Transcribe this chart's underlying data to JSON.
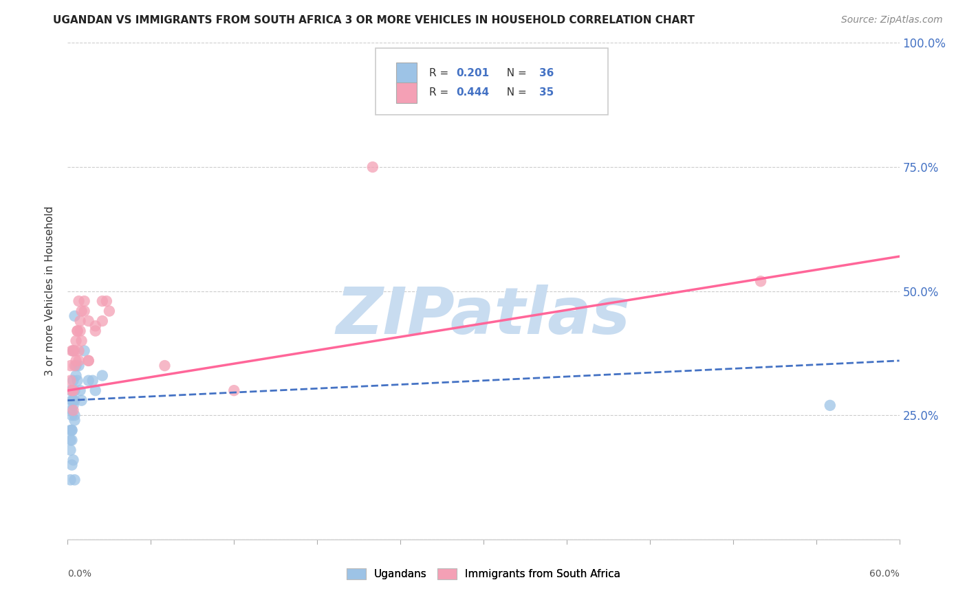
{
  "title": "UGANDAN VS IMMIGRANTS FROM SOUTH AFRICA 3 OR MORE VEHICLES IN HOUSEHOLD CORRELATION CHART",
  "source": "Source: ZipAtlas.com",
  "ylabel": "3 or more Vehicles in Household",
  "xmin": 0.0,
  "xmax": 60.0,
  "ymin": 0.0,
  "ymax": 100.0,
  "yticks": [
    0,
    25,
    50,
    75,
    100
  ],
  "ytick_labels": [
    "",
    "25.0%",
    "50.0%",
    "75.0%",
    "100.0%"
  ],
  "blue_R": 0.201,
  "blue_N": 36,
  "pink_R": 0.444,
  "pink_N": 35,
  "blue_color": "#9DC3E6",
  "pink_color": "#F4A0B5",
  "blue_line_color": "#4472C4",
  "pink_line_color": "#FF6699",
  "blue_scatter": [
    [
      0.2,
      20
    ],
    [
      0.3,
      22
    ],
    [
      0.5,
      45
    ],
    [
      0.4,
      38
    ],
    [
      0.6,
      35
    ],
    [
      0.2,
      30
    ],
    [
      0.3,
      28
    ],
    [
      0.4,
      32
    ],
    [
      0.5,
      28
    ],
    [
      0.3,
      25
    ],
    [
      0.4,
      27
    ],
    [
      0.5,
      30
    ],
    [
      0.2,
      22
    ],
    [
      0.3,
      20
    ],
    [
      0.6,
      33
    ],
    [
      0.5,
      25
    ],
    [
      0.7,
      32
    ],
    [
      0.4,
      28
    ],
    [
      0.2,
      18
    ],
    [
      0.5,
      24
    ],
    [
      0.9,
      30
    ],
    [
      1.5,
      32
    ],
    [
      2.0,
      30
    ],
    [
      2.5,
      33
    ],
    [
      1.2,
      38
    ],
    [
      0.3,
      26
    ],
    [
      0.4,
      28
    ],
    [
      0.8,
      35
    ],
    [
      1.0,
      28
    ],
    [
      1.8,
      32
    ],
    [
      0.3,
      22
    ],
    [
      0.2,
      12
    ],
    [
      0.3,
      15
    ],
    [
      0.5,
      12
    ],
    [
      0.4,
      16
    ],
    [
      55.0,
      27
    ]
  ],
  "pink_scatter": [
    [
      0.3,
      38
    ],
    [
      0.5,
      35
    ],
    [
      0.7,
      42
    ],
    [
      0.9,
      44
    ],
    [
      1.0,
      46
    ],
    [
      0.2,
      32
    ],
    [
      0.4,
      38
    ],
    [
      0.6,
      40
    ],
    [
      0.8,
      36
    ],
    [
      0.3,
      30
    ],
    [
      0.5,
      38
    ],
    [
      0.9,
      42
    ],
    [
      0.2,
      35
    ],
    [
      1.2,
      46
    ],
    [
      1.5,
      44
    ],
    [
      2.0,
      43
    ],
    [
      2.5,
      44
    ],
    [
      3.0,
      46
    ],
    [
      1.0,
      40
    ],
    [
      0.7,
      42
    ],
    [
      0.4,
      30
    ],
    [
      0.6,
      36
    ],
    [
      0.8,
      38
    ],
    [
      1.5,
      36
    ],
    [
      2.5,
      48
    ],
    [
      7.0,
      35
    ],
    [
      12.0,
      30
    ],
    [
      1.2,
      48
    ],
    [
      2.0,
      42
    ],
    [
      2.8,
      48
    ],
    [
      0.8,
      48
    ],
    [
      0.4,
      26
    ],
    [
      1.5,
      36
    ],
    [
      50.0,
      52
    ],
    [
      22.0,
      75
    ]
  ],
  "blue_line_x": [
    0.0,
    60.0
  ],
  "blue_line_y": [
    28.0,
    36.0
  ],
  "pink_line_x": [
    0.0,
    60.0
  ],
  "pink_line_y": [
    30.0,
    57.0
  ],
  "watermark_text": "ZIPatlas",
  "watermark_color": "#C8DCF0",
  "legend_R1": "0.201",
  "legend_N1": "36",
  "legend_R2": "0.444",
  "legend_N2": "35"
}
